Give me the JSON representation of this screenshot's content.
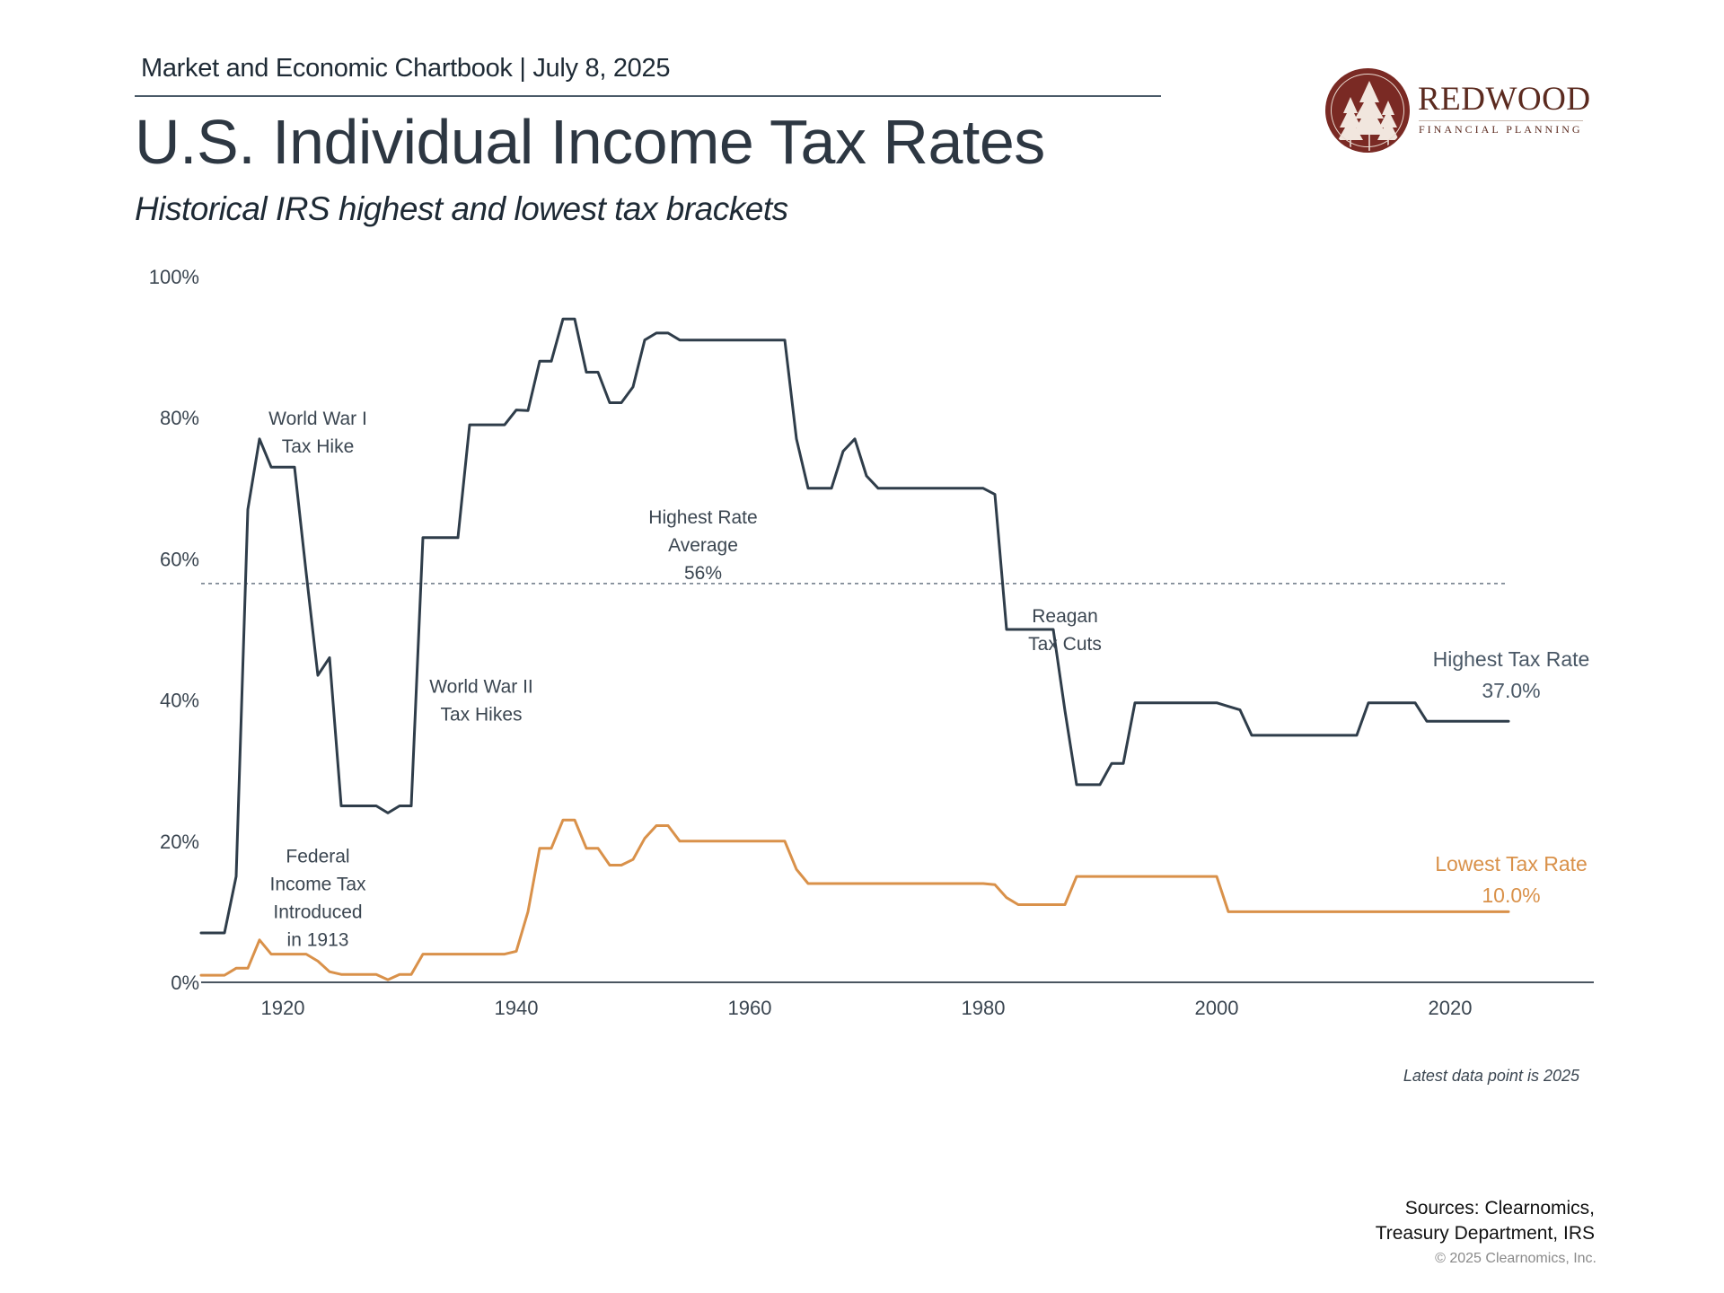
{
  "header": {
    "chartbook": "Market and Economic Chartbook | July 8, 2025",
    "title": "U.S. Individual Income Tax Rates",
    "subtitle": "Historical IRS highest and lowest tax brackets"
  },
  "logo": {
    "name": "REDWOOD",
    "tagline": "FINANCIAL PLANNING",
    "icon": "redwood-trees-icon",
    "brand_color": "#7a2a24"
  },
  "footer": {
    "note": "Latest data point is 2025",
    "sources_line1": "Sources: Clearnomics,",
    "sources_line2": "Treasury Department, IRS",
    "copyright": "© 2025 Clearnomics, Inc."
  },
  "chart_data": {
    "type": "line",
    "title": "U.S. Individual Income Tax Rates",
    "subtitle": "Historical IRS highest and lowest tax brackets",
    "xlabel": "",
    "ylabel": "",
    "xlim": [
      1913,
      2032
    ],
    "ylim": [
      0,
      100
    ],
    "x_ticks": [
      1920,
      1940,
      1960,
      1980,
      2000,
      2020
    ],
    "x_tick_labels": [
      "1920",
      "1940",
      "1960",
      "1980",
      "2000",
      "2020"
    ],
    "y_ticks": [
      0,
      20,
      40,
      60,
      80,
      100
    ],
    "y_tick_labels": [
      "0%",
      "20%",
      "40%",
      "60%",
      "80%",
      "100%"
    ],
    "grid": false,
    "legend": "direct labels at right end of series",
    "series": [
      {
        "name": "Highest Tax Rate",
        "color": "#2f3d4a",
        "end_label": "Highest Tax Rate",
        "end_value_label": "37.0%",
        "x": [
          1913,
          1914,
          1915,
          1916,
          1917,
          1918,
          1919,
          1920,
          1921,
          1922,
          1923,
          1924,
          1925,
          1926,
          1927,
          1928,
          1929,
          1930,
          1931,
          1932,
          1933,
          1934,
          1935,
          1936,
          1937,
          1938,
          1939,
          1940,
          1941,
          1942,
          1943,
          1944,
          1945,
          1946,
          1947,
          1948,
          1949,
          1950,
          1951,
          1952,
          1953,
          1954,
          1955,
          1956,
          1957,
          1958,
          1959,
          1960,
          1961,
          1962,
          1963,
          1964,
          1965,
          1966,
          1967,
          1968,
          1969,
          1970,
          1971,
          1972,
          1973,
          1974,
          1975,
          1976,
          1977,
          1978,
          1979,
          1980,
          1981,
          1982,
          1983,
          1984,
          1985,
          1986,
          1987,
          1988,
          1989,
          1990,
          1991,
          1992,
          1993,
          1994,
          1995,
          1996,
          1997,
          1998,
          1999,
          2000,
          2001,
          2002,
          2003,
          2004,
          2005,
          2006,
          2007,
          2008,
          2009,
          2010,
          2011,
          2012,
          2013,
          2014,
          2015,
          2016,
          2017,
          2018,
          2019,
          2020,
          2021,
          2022,
          2023,
          2024,
          2025
        ],
        "values": [
          7,
          7,
          7,
          15,
          67,
          77,
          73,
          73,
          73,
          58,
          43.5,
          46,
          25,
          25,
          25,
          25,
          24,
          25,
          25,
          63,
          63,
          63,
          63,
          79,
          79,
          79,
          79,
          81.1,
          81,
          88,
          88,
          94,
          94,
          86.45,
          86.45,
          82.13,
          82.13,
          84.36,
          91,
          92,
          92,
          91,
          91,
          91,
          91,
          91,
          91,
          91,
          91,
          91,
          91,
          77,
          70,
          70,
          70,
          75.25,
          77,
          71.75,
          70,
          70,
          70,
          70,
          70,
          70,
          70,
          70,
          70,
          70,
          69.13,
          50,
          50,
          50,
          50,
          50,
          38.5,
          28,
          28,
          28,
          31,
          31,
          39.6,
          39.6,
          39.6,
          39.6,
          39.6,
          39.6,
          39.6,
          39.6,
          39.1,
          38.6,
          35,
          35,
          35,
          35,
          35,
          35,
          35,
          35,
          35,
          35,
          39.6,
          39.6,
          39.6,
          39.6,
          39.6,
          37,
          37,
          37,
          37,
          37,
          37,
          37,
          37
        ]
      },
      {
        "name": "Lowest Tax Rate",
        "color": "#d9914a",
        "end_label": "Lowest Tax Rate",
        "end_value_label": "10.0%",
        "x": [
          1913,
          1914,
          1915,
          1916,
          1917,
          1918,
          1919,
          1920,
          1921,
          1922,
          1923,
          1924,
          1925,
          1926,
          1927,
          1928,
          1929,
          1930,
          1931,
          1932,
          1933,
          1934,
          1935,
          1936,
          1937,
          1938,
          1939,
          1940,
          1941,
          1942,
          1943,
          1944,
          1945,
          1946,
          1947,
          1948,
          1949,
          1950,
          1951,
          1952,
          1953,
          1954,
          1955,
          1956,
          1957,
          1958,
          1959,
          1960,
          1961,
          1962,
          1963,
          1964,
          1965,
          1966,
          1967,
          1968,
          1969,
          1970,
          1971,
          1972,
          1973,
          1974,
          1975,
          1976,
          1977,
          1978,
          1979,
          1980,
          1981,
          1982,
          1983,
          1984,
          1985,
          1986,
          1987,
          1988,
          1989,
          1990,
          1991,
          1992,
          1993,
          1994,
          1995,
          1996,
          1997,
          1998,
          1999,
          2000,
          2001,
          2002,
          2003,
          2004,
          2005,
          2006,
          2007,
          2008,
          2009,
          2010,
          2011,
          2012,
          2013,
          2014,
          2015,
          2016,
          2017,
          2018,
          2019,
          2020,
          2021,
          2022,
          2023,
          2024,
          2025
        ],
        "values": [
          1,
          1,
          1,
          2,
          2,
          6,
          4,
          4,
          4,
          4,
          3,
          1.5,
          1.125,
          1.125,
          1.125,
          1.125,
          0.375,
          1.125,
          1.125,
          4,
          4,
          4,
          4,
          4,
          4,
          4,
          4,
          4.4,
          10,
          19,
          19,
          23,
          23,
          19,
          19,
          16.6,
          16.6,
          17.4,
          20.4,
          22.2,
          22.2,
          20,
          20,
          20,
          20,
          20,
          20,
          20,
          20,
          20,
          20,
          16,
          14,
          14,
          14,
          14,
          14,
          14,
          14,
          14,
          14,
          14,
          14,
          14,
          14,
          14,
          14,
          14,
          13.83,
          12,
          11,
          11,
          11,
          11,
          11,
          15,
          15,
          15,
          15,
          15,
          15,
          15,
          15,
          15,
          15,
          15,
          15,
          15,
          10,
          10,
          10,
          10,
          10,
          10,
          10,
          10,
          10,
          10,
          10,
          10,
          10,
          10,
          10,
          10,
          10,
          10,
          10,
          10,
          10,
          10,
          10,
          10,
          10
        ]
      }
    ],
    "reference_lines": [
      {
        "name": "Highest Rate Average",
        "value": 56.5,
        "style": "dashed",
        "color": "#6b7885"
      }
    ],
    "annotations": [
      {
        "id": "ww1",
        "lines": [
          "World War I",
          "Tax Hike"
        ],
        "x": 1923,
        "y": 79
      },
      {
        "id": "avg",
        "lines": [
          "Highest Rate",
          "Average",
          "56%"
        ],
        "x": 1956,
        "y": 65
      },
      {
        "id": "ww2",
        "lines": [
          "World War II",
          "Tax Hikes"
        ],
        "x": 1937,
        "y": 41
      },
      {
        "id": "reagan",
        "lines": [
          "Reagan",
          "Tax Cuts"
        ],
        "x": 1987,
        "y": 51
      },
      {
        "id": "federal",
        "lines": [
          "Federal",
          "Income Tax",
          "Introduced",
          "in 1913"
        ],
        "x": 1923,
        "y": 17
      }
    ]
  }
}
